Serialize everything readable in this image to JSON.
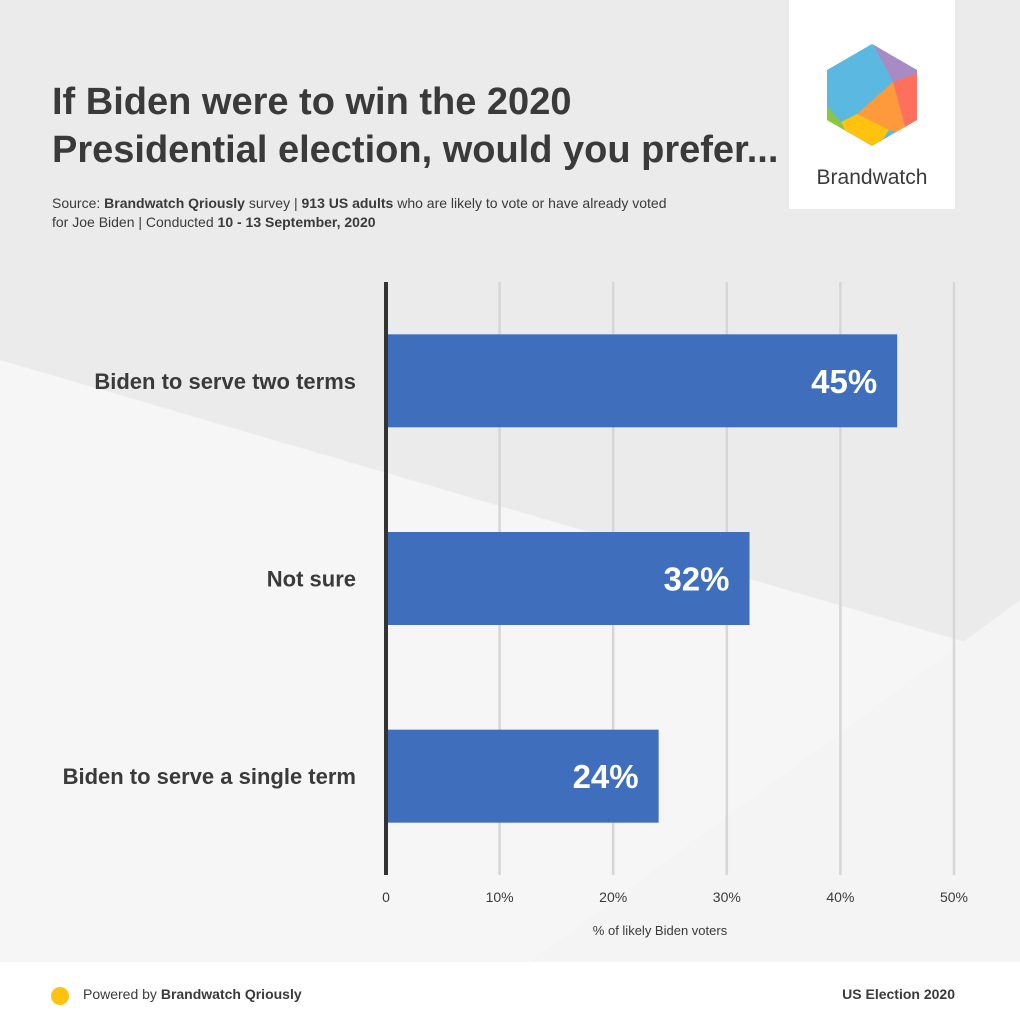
{
  "header": {
    "title_line1": "If Biden were to win the 2020",
    "title_line2": "Presidential election, would you prefer...",
    "source_prefix": "Source: ",
    "source_org": "Brandwatch Qriously",
    "source_mid": " survey | ",
    "source_sample": "913 US adults",
    "source_desc": " who are likely to vote or have already voted",
    "source_line2_prefix": "for Joe Biden | Conducted ",
    "source_dates": "10 - 13 September, 2020"
  },
  "logo": {
    "name": "Brandwatch",
    "colors": [
      "#5bb8e1",
      "#a98bc4",
      "#ff6f5e",
      "#ff9a3c",
      "#ffc20e",
      "#8cc63f"
    ]
  },
  "chart_data": {
    "type": "bar",
    "orientation": "horizontal",
    "categories": [
      "Biden to serve two terms",
      "Not sure",
      "Biden to serve a single term"
    ],
    "values": [
      45,
      32,
      24
    ],
    "value_labels": [
      "45%",
      "32%",
      "24%"
    ],
    "xlim": [
      0,
      50
    ],
    "xticks": [
      0,
      10,
      20,
      30,
      40,
      50
    ],
    "xtick_labels": [
      "0",
      "10%",
      "20%",
      "30%",
      "40%",
      "50%"
    ],
    "xlabel": "% of likely Biden voters",
    "grid": true,
    "bar_color": "#3f6ebc"
  },
  "footer": {
    "powered_prefix": "Powered by ",
    "powered_brand": "Brandwatch Qriously",
    "right_label": "US Election 2020",
    "dot_color": "#ffc20e"
  }
}
